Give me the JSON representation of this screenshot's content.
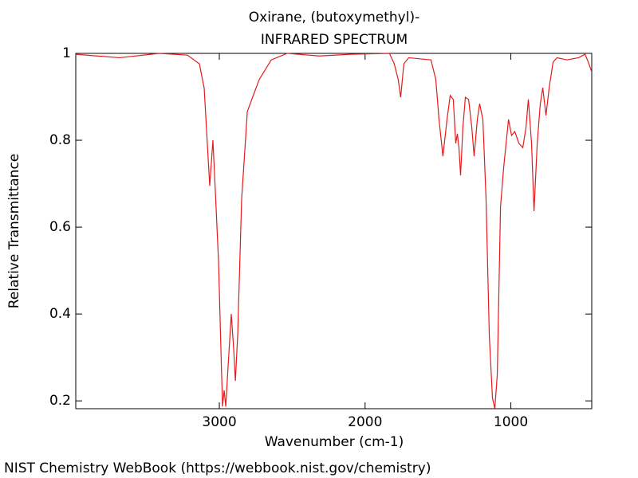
{
  "chart_data": {
    "type": "line",
    "title": "Oxirane, (butoxymethyl)-",
    "subtitle": "INFRARED SPECTRUM",
    "x_label": "Wavenumber (cm-1)",
    "y_label": "Relative Transmittance",
    "source": "NIST Chemistry WebBook (https://webbook.nist.gov/chemistry)",
    "xlim": [
      3985,
      445
    ],
    "ylim": [
      0.182,
      1.0
    ],
    "xticks": [
      3000,
      2000,
      1000
    ],
    "yticks": [
      0.2,
      0.4,
      0.6,
      0.8,
      1
    ],
    "series": [
      {
        "color": "#e41a1c",
        "x": [
          3986,
          3685,
          3411,
          3219,
          3137,
          3104,
          3082,
          3066,
          3044,
          3027,
          3005,
          2989,
          2978,
          2967,
          2956,
          2940,
          2918,
          2901,
          2890,
          2874,
          2847,
          2808,
          2764,
          2726,
          2644,
          2534,
          2315,
          2096,
          1833,
          1800,
          1773,
          1756,
          1734,
          1701,
          1548,
          1515,
          1493,
          1466,
          1438,
          1416,
          1395,
          1378,
          1367,
          1356,
          1345,
          1329,
          1312,
          1290,
          1268,
          1252,
          1230,
          1214,
          1192,
          1170,
          1148,
          1126,
          1110,
          1093,
          1071,
          1049,
          1016,
          995,
          973,
          945,
          918,
          896,
          880,
          858,
          841,
          819,
          798,
          781,
          759,
          737,
          710,
          683,
          617,
          535,
          491,
          469,
          446
        ],
        "values": [
          0.998,
          0.99,
          1.0,
          0.996,
          0.976,
          0.92,
          0.79,
          0.695,
          0.8,
          0.68,
          0.517,
          0.316,
          0.187,
          0.224,
          0.187,
          0.279,
          0.4,
          0.316,
          0.246,
          0.352,
          0.664,
          0.866,
          0.906,
          0.94,
          0.985,
          1.0,
          0.994,
          0.998,
          1.0,
          0.976,
          0.94,
          0.899,
          0.976,
          0.99,
          0.985,
          0.94,
          0.848,
          0.763,
          0.848,
          0.903,
          0.894,
          0.793,
          0.815,
          0.783,
          0.719,
          0.83,
          0.899,
          0.894,
          0.83,
          0.763,
          0.848,
          0.884,
          0.848,
          0.664,
          0.352,
          0.206,
          0.183,
          0.261,
          0.646,
          0.738,
          0.848,
          0.811,
          0.82,
          0.793,
          0.783,
          0.83,
          0.894,
          0.793,
          0.637,
          0.793,
          0.884,
          0.921,
          0.857,
          0.921,
          0.98,
          0.99,
          0.985,
          0.99,
          0.998,
          0.98,
          0.958
        ]
      }
    ]
  }
}
